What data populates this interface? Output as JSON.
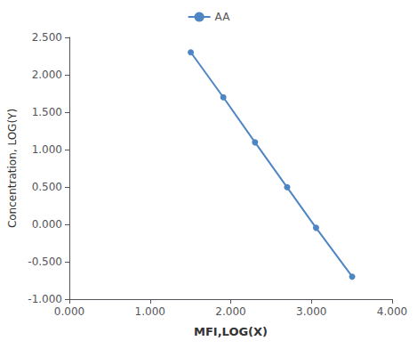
{
  "chart_data": {
    "type": "line",
    "x": [
      1.505,
      1.908,
      2.301,
      2.699,
      3.057,
      3.505
    ],
    "series": [
      {
        "name": "AA",
        "color": "#4E86C4",
        "marker": "circle",
        "values": [
          2.301,
          1.699,
          1.097,
          0.496,
          -0.046,
          -0.699
        ]
      }
    ],
    "xlabel": "MFI,LOG(X)",
    "ylabel": "Concentration, LOG(Y)",
    "xlim": [
      0.0,
      4.0
    ],
    "ylim": [
      -1.0,
      2.5
    ],
    "xticks": [
      {
        "value": 0,
        "label": "0.000"
      },
      {
        "value": 1,
        "label": "1.000"
      },
      {
        "value": 2,
        "label": "2.000"
      },
      {
        "value": 3,
        "label": "3.000"
      },
      {
        "value": 4,
        "label": "4.000"
      }
    ],
    "yticks": [
      {
        "value": -1,
        "label": "-1.000"
      },
      {
        "value": -0.5,
        "label": "-0.500"
      },
      {
        "value": 0,
        "label": "0.000"
      },
      {
        "value": 0.5,
        "label": "0.500"
      },
      {
        "value": 1,
        "label": "1.000"
      },
      {
        "value": 1.5,
        "label": "1.500"
      },
      {
        "value": 2,
        "label": "2.000"
      },
      {
        "value": 2.5,
        "label": "2.500"
      }
    ],
    "grid": false,
    "legend": "top"
  }
}
